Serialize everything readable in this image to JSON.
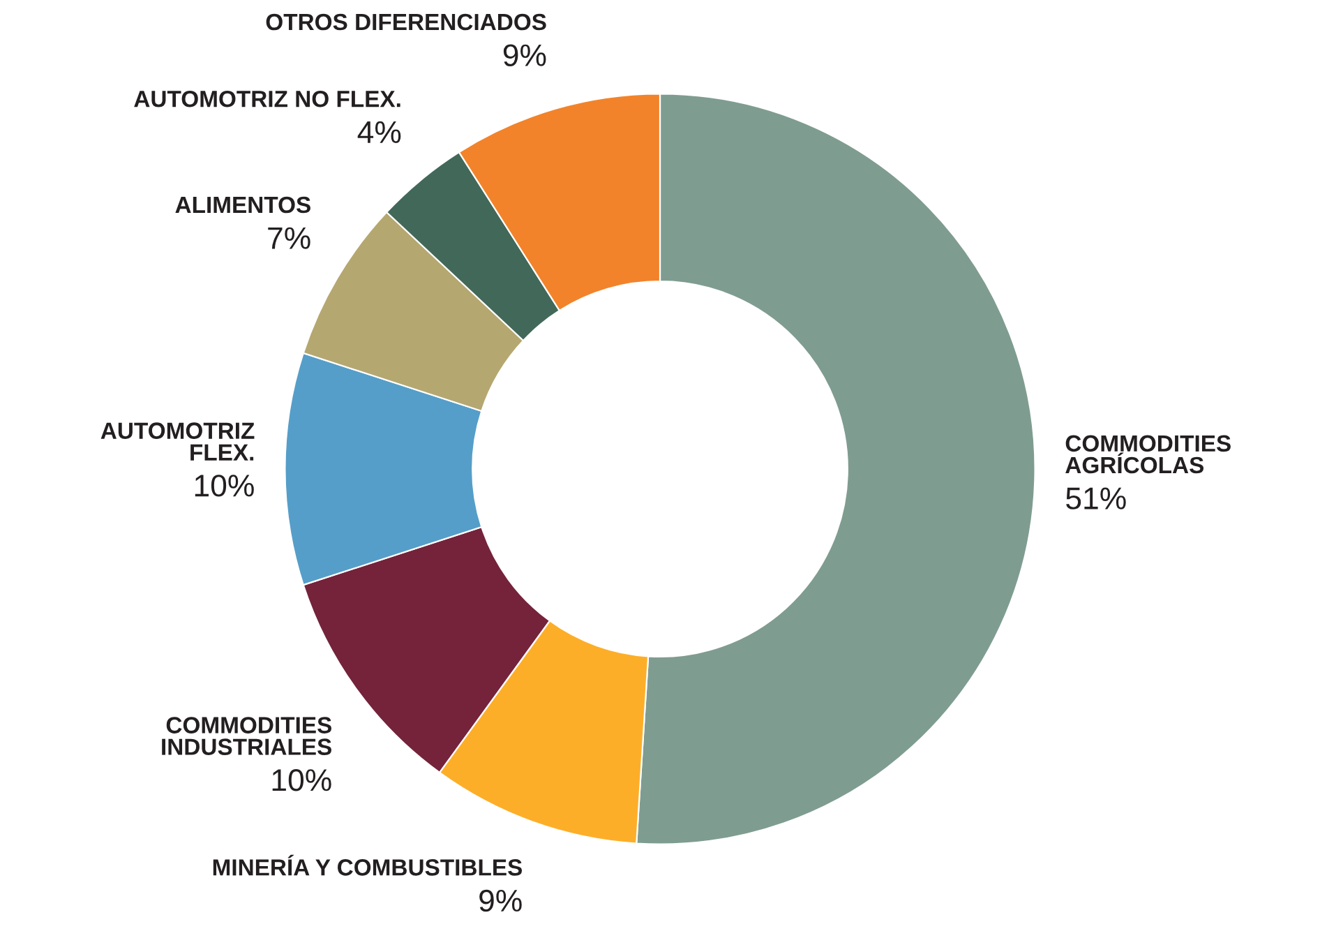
{
  "chart_data": {
    "type": "donut",
    "categories": [
      "COMMODITIES\nAGRÍCOLAS",
      "MINERÍA Y COMBUSTIBLES",
      "COMMODITIES\nINDUSTRIALES",
      "AUTOMOTRIZ\nFLEX.",
      "ALIMENTOS",
      "AUTOMOTRIZ NO FLEX.",
      "OTROS DIFERENCIADOS"
    ],
    "values": [
      51,
      9,
      10,
      10,
      7,
      4,
      9
    ],
    "value_labels": [
      "51%",
      "9%",
      "10%",
      "10%",
      "7%",
      "4%",
      "9%"
    ],
    "colors": [
      "#7f9c90",
      "#fdae28",
      "#74233b",
      "#559ec9",
      "#b5a770",
      "#426859",
      "#f2832a"
    ]
  }
}
